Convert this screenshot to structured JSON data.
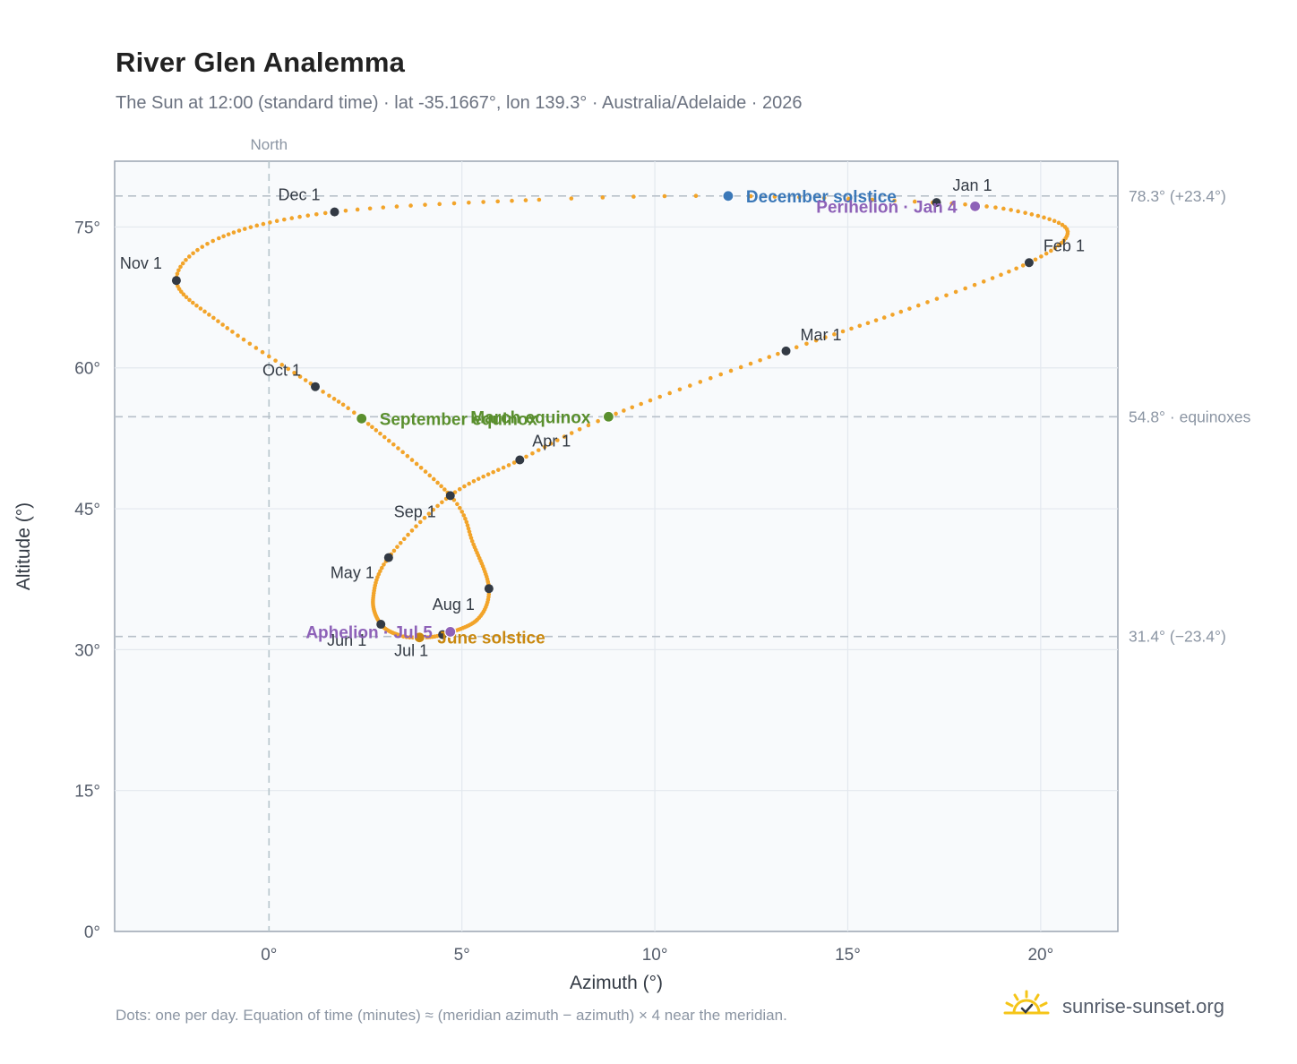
{
  "title": "River Glen Analemma",
  "subtitle": "The Sun at 12:00 (standard time) · lat -35.1667°, lon 139.3° · Australia/Adelaide · 2026",
  "footnote": "Dots: one per day. Equation of time (minutes) ≈ (meridian azimuth − azimuth) × 4 near the meridian.",
  "brand": {
    "text": "sunrise-sunset.org",
    "icon": "sun-logo-icon"
  },
  "colors": {
    "path": "#f2a42a",
    "month_marker": "#333a44",
    "equinox": "#5a8f2e",
    "december_solstice": "#3b78b8",
    "june_solstice": "#c9880f",
    "perihelion_aphelion": "#8e62b8",
    "plot_background": "#f8fafc",
    "reference_line": "#b7c0c9"
  },
  "chart_data": {
    "type": "scatter",
    "xlabel": "Azimuth (°)",
    "ylabel": "Altitude (°)",
    "xlim": [
      -4,
      22
    ],
    "ylim": [
      0,
      82
    ],
    "x_ticks": [
      0,
      5,
      10,
      15,
      20
    ],
    "x_tick_labels": [
      "0°",
      "5°",
      "10°",
      "15°",
      "20°"
    ],
    "y_ticks": [
      0,
      15,
      30,
      45,
      60,
      75
    ],
    "y_tick_labels": [
      "0°",
      "15°",
      "30°",
      "45°",
      "60°",
      "75°"
    ],
    "grid": true,
    "meridian": {
      "x": 0,
      "label": "North"
    },
    "reference_lines": [
      {
        "y": 78.3,
        "label": "78.3° (+23.4°)"
      },
      {
        "y": 54.8,
        "label": "54.8° · equinoxes"
      },
      {
        "y": 31.4,
        "label": "31.4° (−23.4°)"
      }
    ],
    "path_description": "one dot per day",
    "path_keypoints": [
      {
        "doy": 1,
        "x": 17.3,
        "y": 77.6
      },
      {
        "doy": 10,
        "x": 19.6,
        "y": 76.5
      },
      {
        "doy": 20,
        "x": 20.7,
        "y": 74.5
      },
      {
        "doy": 32,
        "x": 19.7,
        "y": 71.2
      },
      {
        "doy": 46,
        "x": 16.6,
        "y": 66.3
      },
      {
        "doy": 60,
        "x": 13.4,
        "y": 61.8
      },
      {
        "doy": 79,
        "x": 8.8,
        "y": 54.8
      },
      {
        "doy": 91,
        "x": 6.5,
        "y": 50.2
      },
      {
        "doy": 105,
        "x": 4.7,
        "y": 46.4
      },
      {
        "doy": 121,
        "x": 3.1,
        "y": 39.8
      },
      {
        "doy": 135,
        "x": 2.7,
        "y": 35.5
      },
      {
        "doy": 152,
        "x": 2.9,
        "y": 32.7
      },
      {
        "doy": 166,
        "x": 3.4,
        "y": 31.5
      },
      {
        "doy": 172,
        "x": 3.9,
        "y": 31.3
      },
      {
        "doy": 182,
        "x": 4.5,
        "y": 31.6
      },
      {
        "doy": 200,
        "x": 5.4,
        "y": 33.2
      },
      {
        "doy": 213,
        "x": 5.7,
        "y": 36.5
      },
      {
        "doy": 230,
        "x": 5.3,
        "y": 41.2
      },
      {
        "doy": 244,
        "x": 4.7,
        "y": 46.4
      },
      {
        "doy": 266,
        "x": 2.4,
        "y": 54.6
      },
      {
        "doy": 274,
        "x": 1.2,
        "y": 58.0
      },
      {
        "doy": 290,
        "x": -1.2,
        "y": 64.6
      },
      {
        "doy": 305,
        "x": -2.4,
        "y": 69.3
      },
      {
        "doy": 318,
        "x": -1.3,
        "y": 73.8
      },
      {
        "doy": 335,
        "x": 1.7,
        "y": 76.6
      },
      {
        "doy": 350,
        "x": 7.0,
        "y": 77.9
      },
      {
        "doy": 356,
        "x": 11.9,
        "y": 78.3
      },
      {
        "doy": 365,
        "x": 17.2,
        "y": 77.6
      }
    ],
    "month_markers": [
      {
        "label": "Jan 1",
        "x": 17.3,
        "y": 77.6
      },
      {
        "label": "Feb 1",
        "x": 19.7,
        "y": 71.2
      },
      {
        "label": "Mar 1",
        "x": 13.4,
        "y": 61.8
      },
      {
        "label": "Apr 1",
        "x": 6.5,
        "y": 50.2
      },
      {
        "label": "May 1",
        "x": 3.1,
        "y": 39.8
      },
      {
        "label": "Jun 1",
        "x": 2.9,
        "y": 32.7
      },
      {
        "label": "Jul 1",
        "x": 4.5,
        "y": 31.6
      },
      {
        "label": "Aug 1",
        "x": 5.7,
        "y": 36.5
      },
      {
        "label": "Sep 1",
        "x": 4.7,
        "y": 46.4
      },
      {
        "label": "Oct 1",
        "x": 1.2,
        "y": 58.0
      },
      {
        "label": "Nov 1",
        "x": -2.4,
        "y": 69.3
      },
      {
        "label": "Dec 1",
        "x": 1.7,
        "y": 76.6
      }
    ],
    "events": [
      {
        "label": "December solstice",
        "x": 11.9,
        "y": 78.3,
        "kind": "december_solstice"
      },
      {
        "label": "Perihelion · Jan 4",
        "x": 18.3,
        "y": 77.2,
        "kind": "perihelion_aphelion"
      },
      {
        "label": "March equinox",
        "x": 8.8,
        "y": 54.8,
        "kind": "equinox"
      },
      {
        "label": "September equinox",
        "x": 2.4,
        "y": 54.6,
        "kind": "equinox"
      },
      {
        "label": "June solstice",
        "x": 3.9,
        "y": 31.3,
        "kind": "june_solstice"
      },
      {
        "label": "Aphelion · Jul 5",
        "x": 4.7,
        "y": 31.9,
        "kind": "perihelion_aphelion"
      }
    ]
  }
}
